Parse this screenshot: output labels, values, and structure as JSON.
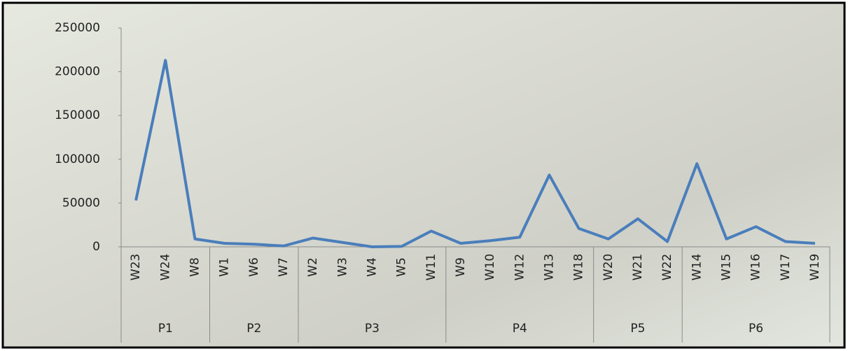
{
  "chart_data": {
    "type": "line",
    "groups": [
      {
        "label": "P1",
        "categories": [
          "W23",
          "W24",
          "W8"
        ]
      },
      {
        "label": "P2",
        "categories": [
          "W1",
          "W6",
          "W7"
        ]
      },
      {
        "label": "P3",
        "categories": [
          "W2",
          "W3",
          "W4",
          "W5",
          "W11"
        ]
      },
      {
        "label": "P4",
        "categories": [
          "W9",
          "W10",
          "W12",
          "W13",
          "W18"
        ]
      },
      {
        "label": "P5",
        "categories": [
          "W20",
          "W21",
          "W22"
        ]
      },
      {
        "label": "P6",
        "categories": [
          "W14",
          "W15",
          "W16",
          "W17",
          "W19"
        ]
      }
    ],
    "series": [
      {
        "color": "#4a7ebb",
        "values": [
          53000,
          213000,
          9000,
          4000,
          3000,
          1000,
          10000,
          5000,
          0,
          500,
          18000,
          4000,
          7000,
          11000,
          82000,
          21000,
          9000,
          32000,
          6000,
          95000,
          9000,
          23000,
          6000,
          4000
        ]
      }
    ],
    "ylim": [
      0,
      250000
    ],
    "yticks": [
      0,
      50000,
      100000,
      150000,
      200000,
      250000
    ]
  }
}
